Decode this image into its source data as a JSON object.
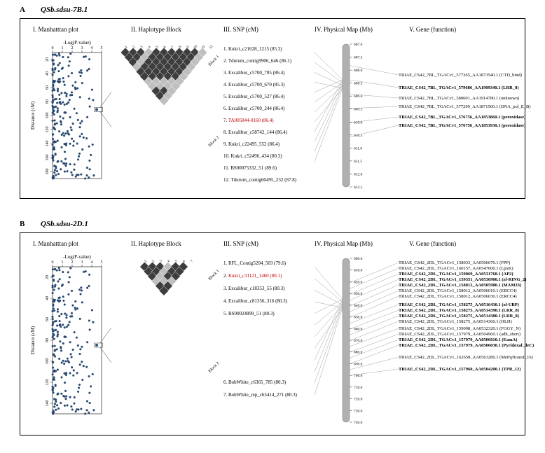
{
  "panelA": {
    "label": "A",
    "title": "QSb.sdsu-7B.1",
    "columns": [
      "I. Manhatttan plot",
      "II. Haplotype Block",
      "III. SNP (cM)",
      "IV. Physical Map (Mb)",
      "V. Gene (function)"
    ],
    "manhattan": {
      "xlabel": "-Log(P-value)",
      "ylabel": "Distance (cM)",
      "xticks": [
        0,
        1,
        2,
        3,
        4,
        5
      ],
      "yticks": [
        20,
        40,
        60,
        80,
        100,
        120,
        140,
        160,
        180
      ],
      "point_color": "#2a4d7a",
      "highlight_y": 86
    },
    "snps": [
      {
        "n": "1.",
        "t": "Kukri_c21628_1215 (85.3)"
      },
      {
        "n": "2.",
        "t": "Tdurum_contig9906_646 (86.1)"
      },
      {
        "n": "3.",
        "t": "Excalibur_c5700_705 (86.4)"
      },
      {
        "n": "4.",
        "t": "Excalibur_c5700_670 (85.3)"
      },
      {
        "n": "5.",
        "t": "Excalibur_c5700_527 (86.4)"
      },
      {
        "n": "6.",
        "t": "Excalibur_c5700_244 (86.4)"
      },
      {
        "n": "7.",
        "t": "TA005844-0160 (86.4)",
        "red": true
      },
      {
        "n": "8.",
        "t": "Excalibur_c58742_144 (86.4)"
      },
      {
        "n": "9.",
        "t": "Kukri_c22495_552 (86.4)"
      },
      {
        "n": "10.",
        "t": "Kukri_c52496_434 (80.3)"
      },
      {
        "n": "11.",
        "t": "BS00075332_51 (89.6)"
      },
      {
        "n": "12.",
        "t": "Tdurum_contig60495_232 (87.8)"
      }
    ],
    "phys_ticks": [
      "607.0",
      "607.5",
      "608.0",
      "608.5",
      "609.0",
      "609.5",
      "610.0",
      "610.5",
      "611.0",
      "611.5",
      "612.0",
      "612.5"
    ],
    "genes": [
      {
        "t": "TRIAE_CS42_7BL_TGACv1_577365_AA1873540.1 (CTD_bind)",
        "b": false,
        "y": 20
      },
      {
        "t": "TRIAE_CS42_7BL_TGACv1_579686_AA1909340.1 (LRR_8)",
        "b": true,
        "y": 38
      },
      {
        "t": "TRIAE_CS42_7BL_TGACv1_580601_AA1914780.1 (unknown)",
        "b": false,
        "y": 53
      },
      {
        "t": "TRIAE_CS42_7BL_TGACv1_577299_AA1871560.1 (DNA_pol_E_B)",
        "b": false,
        "y": 65
      },
      {
        "t": "TRIAE_CS42_7BL_TGACv1_576756_AA1853860.1 (peroxidase)",
        "b": true,
        "y": 80
      },
      {
        "t": "TRIAE_CS42_7BL_TGACv1_576756_AA1853930.1 (peroxidase)",
        "b": true,
        "y": 92
      }
    ]
  },
  "panelB": {
    "label": "B",
    "title": "QSb.sdsu-2D.1",
    "columns": [
      "I. Manhatttan plot",
      "II. Haplotype Block",
      "III. SNP (cM)",
      "IV. Physical Map (Mb)",
      "V. Gene (function)"
    ],
    "manhattan": {
      "xlabel": "-Log(P-value)",
      "ylabel": "Distance (cM)",
      "xticks": [
        0,
        1,
        2,
        3,
        4,
        5
      ],
      "yticks": [
        20,
        40,
        60,
        80,
        100,
        120,
        140
      ],
      "point_color": "#2a4d7a",
      "highlight_y": 80
    },
    "snps_top": [
      {
        "n": "1.",
        "t": "RFL_Contig5204_503 (79.6)"
      },
      {
        "n": "2.",
        "t": "Kukri_c31121_1460 (80.1)",
        "red": true
      },
      {
        "n": "3.",
        "t": "Excalibur_c18353_55 (80.3)"
      },
      {
        "n": "4.",
        "t": "Excalibur_c81356_316 (80.3)"
      },
      {
        "n": "5.",
        "t": "BS00024899_51 (80.3)"
      }
    ],
    "snps_bot": [
      {
        "n": "6.",
        "t": "BobWhite_c6365_785 (80.3)"
      },
      {
        "n": "7.",
        "t": "BobWhite_rep_c65414_271 (80.3)"
      }
    ],
    "phys_ticks": [
      "600.0",
      "610.0",
      "620.0",
      "630.0",
      "640.0",
      "650.0",
      "660.0",
      "670.0",
      "680.0",
      "690.0",
      "700.0",
      "710.0",
      "720.0",
      "730.0",
      "740.0"
    ],
    "genes": [
      {
        "t": "TRIAE_CS42_2DL_TGACv1_158033_AA0506670.1 (FPP)",
        "b": false,
        "y": 0
      },
      {
        "t": "TRIAE_CS42_2DL_TGACv1_160157_AA0547600.1 (LpxK)",
        "b": false,
        "y": 8
      },
      {
        "t": "TRIAE_CS42_2DL_TGACv1_159069_AA0531768.1 (AP2)",
        "b": true,
        "y": 16
      },
      {
        "t": "TRIAE_CS42_2DL_TGACv1_159351_AA0536900.1 (zf-RING_2)",
        "b": true,
        "y": 24
      },
      {
        "t": "TRIAE_CS42_2DL_TGACv1_158012_AA0505980.1 (MAM33)",
        "b": true,
        "y": 32
      },
      {
        "t": "TRIAE_CS42_2DL_TGACv1_158012_AA0506010.1 (ERCC4)",
        "b": false,
        "y": 40
      },
      {
        "t": "TRIAE_CS42_2DL_TGACv1_158012_AA0506030.1 (ERCC4)",
        "b": false,
        "y": 48
      },
      {
        "t": "TRIAE_CS42_2DL_TGACv1_158275_AA0516430.1 (zf-UBP)",
        "b": true,
        "y": 60
      },
      {
        "t": "TRIAE_CS42_2DL_TGACv1_158275_AA0514390.1 (LRR_8)",
        "b": true,
        "y": 68
      },
      {
        "t": "TRIAE_CS42_2DL_TGACv1_158275_AA0514380.1 (LRR_8)",
        "b": true,
        "y": 76
      },
      {
        "t": "TRIAE_CS42_2DL_TGACv1_158275_AA0514360.1 (HLH)",
        "b": false,
        "y": 84
      },
      {
        "t": "TRIAE_CS42_2DL_TGACv1_159098_AA0532320.1 (FGGY_N)",
        "b": false,
        "y": 94
      },
      {
        "t": "TRIAE_CS42_2DL_TGACv1_157979_AA0504960.1 (adh_short)",
        "b": false,
        "y": 102
      },
      {
        "t": "TRIAE_CS42_2DL_TGACv1_157979_AA0506010.1 (EamA)",
        "b": true,
        "y": 110
      },
      {
        "t": "TRIAE_CS42_2DL_TGACv1_157979_AA0506030.1 (Pyridoxal_deC)",
        "b": true,
        "y": 118
      },
      {
        "t": "TRIAE_CS42_2DL_TGACv1_162658_AA0563280.1 (Methyltransf_16)",
        "b": false,
        "y": 135
      },
      {
        "t": "TRIAE_CS42_2DL_TGACv1_157960_AA0504200.1 (TPR_12)",
        "b": true,
        "y": 152
      }
    ]
  },
  "colors": {
    "dark_diamond": "#3d3d3d",
    "light_diamond": "#bfbfbf",
    "chrom": "#b0b0b0",
    "chrom_border": "#808080",
    "line": "#888888"
  }
}
